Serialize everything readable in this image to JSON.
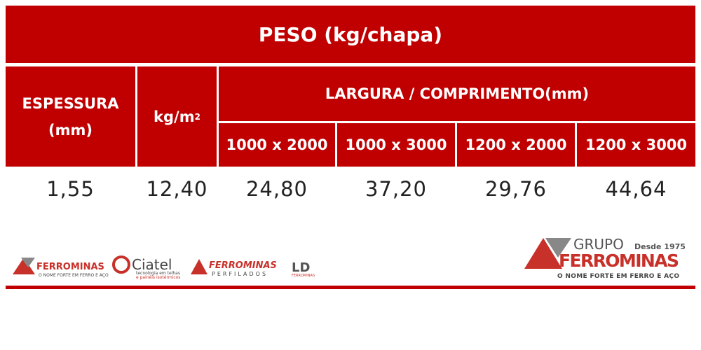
{
  "table": {
    "title": "PESO (kg/chapa)",
    "headers": {
      "espessura": [
        "ESPESSURA",
        "(mm)"
      ],
      "kg": {
        "text": "kg/m",
        "superscript": "2"
      },
      "largura": "LARGURA / COMPRIMENTO(mm)",
      "sizes": [
        "1000 x 2000",
        "1000 x 3000",
        "1200 x 2000",
        "1200 x 3000"
      ]
    },
    "rows": [
      [
        "1,55",
        "12,40",
        "24,80",
        "37,20",
        "29,76",
        "44,64"
      ]
    ]
  },
  "footer": {
    "logos": [
      {
        "name": "FERROMINAS",
        "tagline": "O NOME FORTE EM FERRO E AÇO"
      },
      {
        "name": "Ciatel",
        "tagline": [
          "tecnologia em telhas",
          "e painéis isotérmicos"
        ]
      },
      {
        "name": "FERROMINAS",
        "tagline": "PERFILADOS"
      },
      {
        "name": "LD",
        "tagline": "FERROMINAS"
      }
    ],
    "group": {
      "prefix": "GRUPO",
      "since": "Desde 1975",
      "name": "FERROMINAS",
      "tagline": "O NOME FORTE EM FERRO E AÇO"
    }
  }
}
